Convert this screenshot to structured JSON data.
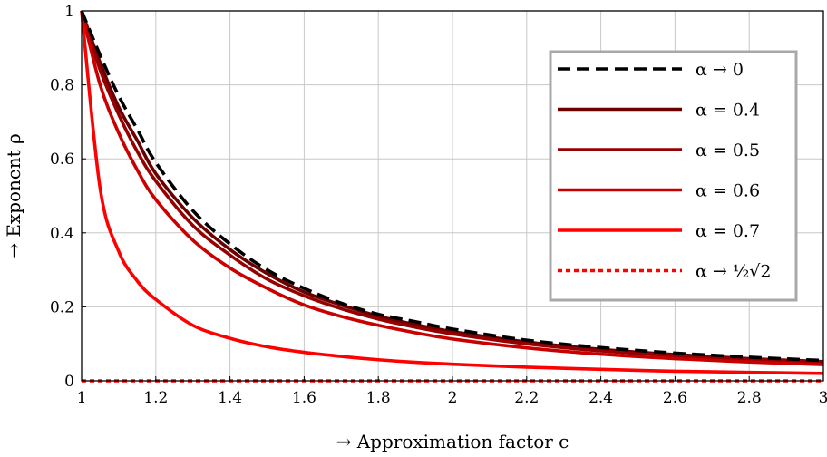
{
  "chart_data": {
    "type": "line",
    "xlabel": "→ Approximation factor c",
    "ylabel": "→ Exponent ρ",
    "xlim": [
      1,
      3
    ],
    "ylim": [
      0,
      1
    ],
    "grid": true,
    "legend_position": "top-right",
    "x_ticks": [
      {
        "value": 1,
        "label": "1"
      },
      {
        "value": 1.2,
        "label": "1.2"
      },
      {
        "value": 1.4,
        "label": "1.4"
      },
      {
        "value": 1.6,
        "label": "1.6"
      },
      {
        "value": 1.8,
        "label": "1.8"
      },
      {
        "value": 2,
        "label": "2"
      },
      {
        "value": 2.2,
        "label": "2.2"
      },
      {
        "value": 2.4,
        "label": "2.4"
      },
      {
        "value": 2.6,
        "label": "2.6"
      },
      {
        "value": 2.8,
        "label": "2.8"
      },
      {
        "value": 3,
        "label": "3"
      }
    ],
    "y_ticks": [
      {
        "value": 0,
        "label": "0"
      },
      {
        "value": 0.2,
        "label": "0.2"
      },
      {
        "value": 0.4,
        "label": "0.4"
      },
      {
        "value": 0.6,
        "label": "0.6"
      },
      {
        "value": 0.8,
        "label": "0.8"
      },
      {
        "value": 1,
        "label": "1"
      }
    ],
    "x": [
      1,
      1.05,
      1.1,
      1.15,
      1.2,
      1.3,
      1.4,
      1.5,
      1.6,
      1.7,
      1.8,
      1.9,
      2,
      2.2,
      2.4,
      2.6,
      2.8,
      3
    ],
    "series": [
      {
        "name": "α → 0",
        "color": "#000000",
        "style": "dashed",
        "values": [
          1.0,
          0.88,
          0.77,
          0.68,
          0.59,
          0.46,
          0.37,
          0.3,
          0.25,
          0.21,
          0.18,
          0.16,
          0.14,
          0.11,
          0.09,
          0.075,
          0.064,
          0.055
        ]
      },
      {
        "name": "α = 0.4",
        "color": "#6b0000",
        "style": "solid",
        "values": [
          1.0,
          0.86,
          0.74,
          0.65,
          0.56,
          0.44,
          0.355,
          0.29,
          0.24,
          0.205,
          0.175,
          0.152,
          0.133,
          0.105,
          0.085,
          0.071,
          0.06,
          0.052
        ]
      },
      {
        "name": "α = 0.5",
        "color": "#960000",
        "style": "solid",
        "values": [
          1.0,
          0.84,
          0.72,
          0.62,
          0.54,
          0.42,
          0.34,
          0.275,
          0.23,
          0.195,
          0.167,
          0.145,
          0.127,
          0.1,
          0.081,
          0.068,
          0.058,
          0.05
        ]
      },
      {
        "name": "α = 0.6",
        "color": "#c80000",
        "style": "solid",
        "values": [
          1.0,
          0.8,
          0.67,
          0.57,
          0.49,
          0.38,
          0.305,
          0.25,
          0.205,
          0.174,
          0.15,
          0.13,
          0.113,
          0.089,
          0.072,
          0.06,
          0.051,
          0.044
        ]
      },
      {
        "name": "α = 0.7",
        "color": "#ff0000",
        "style": "solid",
        "values": [
          1.0,
          0.52,
          0.35,
          0.27,
          0.22,
          0.15,
          0.115,
          0.092,
          0.077,
          0.066,
          0.057,
          0.05,
          0.045,
          0.037,
          0.031,
          0.026,
          0.023,
          0.02
        ]
      },
      {
        "name": "α → ½√2",
        "color": "#ff0000",
        "style": "dotted",
        "values": [
          0,
          0,
          0,
          0,
          0,
          0,
          0,
          0,
          0,
          0,
          0,
          0,
          0,
          0,
          0,
          0,
          0,
          0
        ]
      }
    ]
  }
}
